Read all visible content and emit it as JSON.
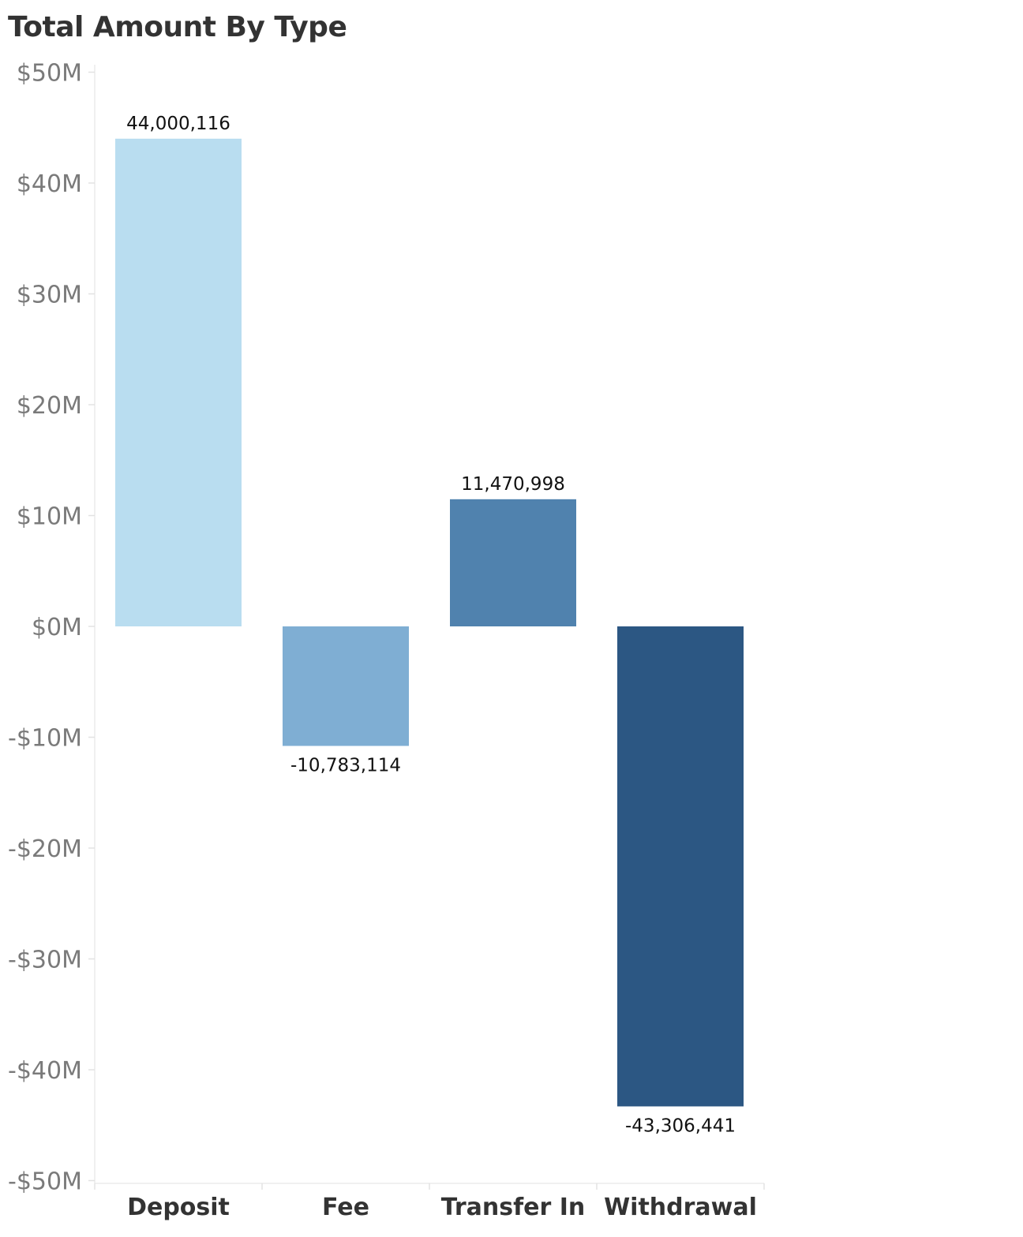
{
  "chart_data": {
    "type": "bar",
    "title": "Total Amount By Type",
    "xlabel": "",
    "ylabel": "",
    "categories": [
      "Deposit",
      "Fee",
      "Transfer In",
      "Withdrawal"
    ],
    "values": [
      44000116,
      -10783114,
      11470998,
      -43306441
    ],
    "data_labels": [
      "44,000,116",
      "-10,783,114",
      "11,470,998",
      "-43,306,441"
    ],
    "colors": [
      "#b9ddf0",
      "#7faed3",
      "#5082ae",
      "#2c5783"
    ],
    "ylim": [
      -50000000,
      50000000
    ],
    "yticks": [
      50000000,
      40000000,
      30000000,
      20000000,
      10000000,
      0,
      -10000000,
      -20000000,
      -30000000,
      -40000000,
      -50000000
    ],
    "ytick_labels": [
      "$50M",
      "$40M",
      "$30M",
      "$20M",
      "$10M",
      "$0M",
      "-$10M",
      "-$20M",
      "-$30M",
      "-$40M",
      "-$50M"
    ],
    "grid": false,
    "legend": "none"
  }
}
